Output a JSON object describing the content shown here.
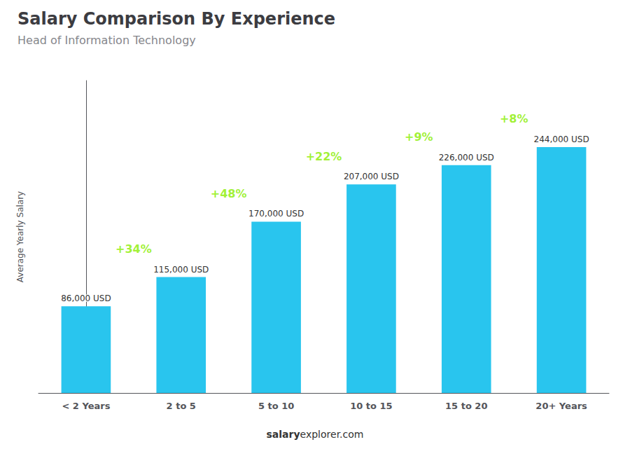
{
  "chart_data": {
    "type": "bar",
    "title": "Salary Comparison By Experience",
    "subtitle": "Head of Information Technology",
    "ylabel": "Average Yearly Salary",
    "categories": [
      "< 2 Years",
      "2 to 5",
      "5 to 10",
      "10 to 15",
      "15 to 20",
      "20+ Years"
    ],
    "values": [
      86000,
      115000,
      170000,
      207000,
      226000,
      244000
    ],
    "value_labels": [
      "86,000 USD",
      "115,000 USD",
      "170,000 USD",
      "207,000 USD",
      "226,000 USD",
      "244,000 USD"
    ],
    "data_labels": true,
    "color": "#29c5ee",
    "ylim": [
      0,
      310000
    ],
    "grid": false,
    "tick_labels": "x",
    "annotations": [
      {
        "text": "+34%",
        "color": "#88ee00"
      },
      {
        "text": "+48%",
        "color": "#88ee00"
      },
      {
        "text": "+22%",
        "color": "#88ee00"
      },
      {
        "text": "+9%",
        "color": "#88ee00"
      },
      {
        "text": "+8%",
        "color": "#88ee00"
      }
    ],
    "footer": [
      "salary",
      "explorer.com"
    ]
  }
}
